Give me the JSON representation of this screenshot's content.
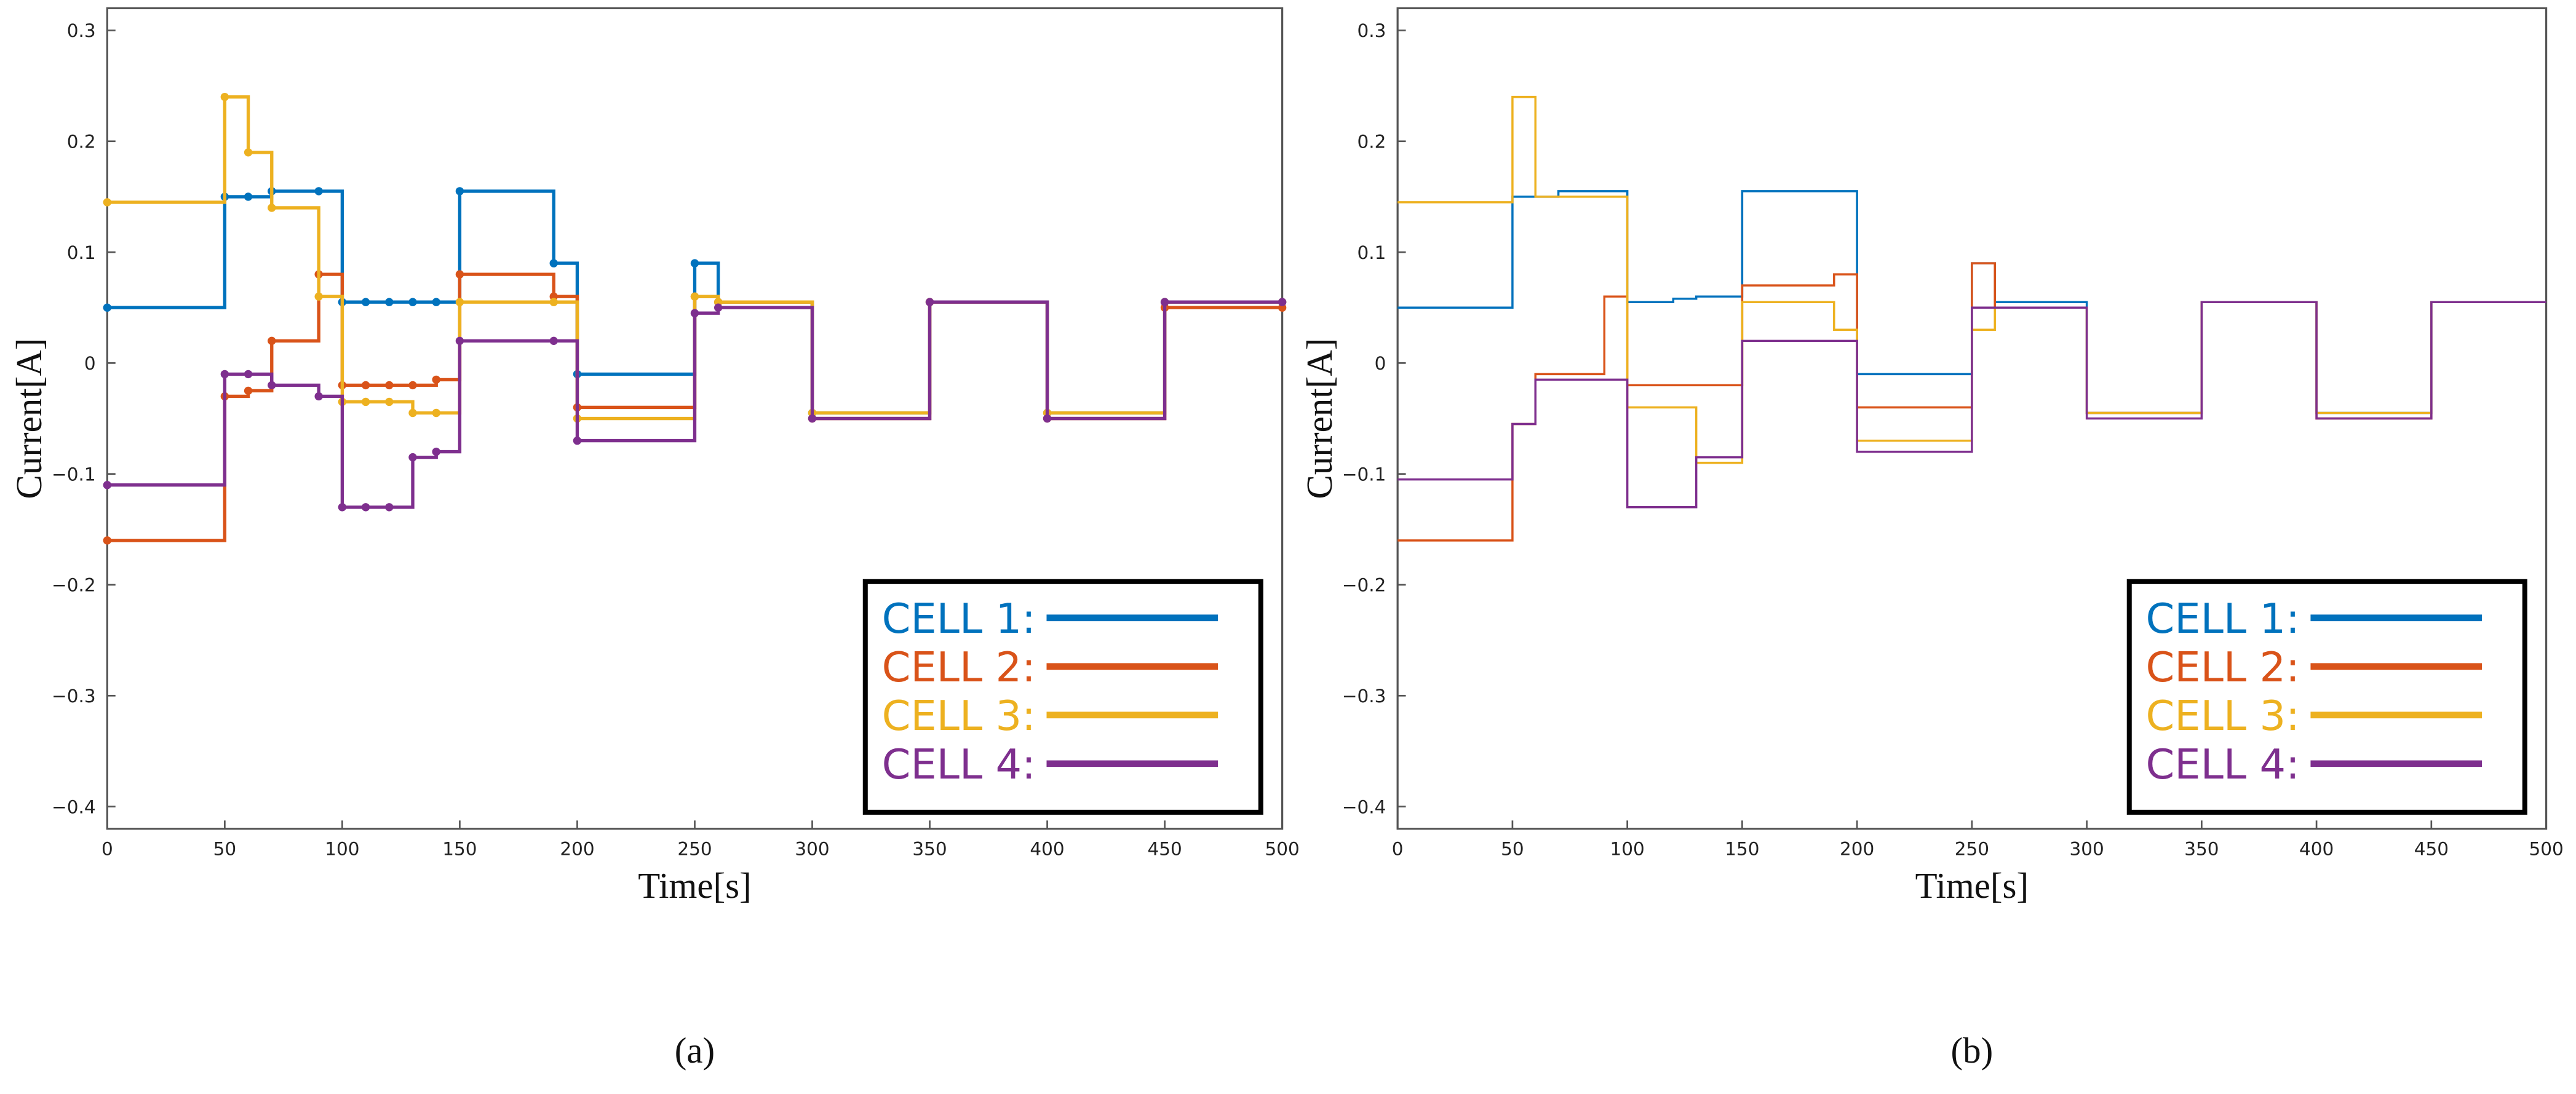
{
  "chart_data": [
    {
      "type": "line",
      "caption": "(a)",
      "xlabel": "Time[s]",
      "ylabel": "Current[A]",
      "xlim": [
        0,
        500
      ],
      "ylim": [
        -0.42,
        0.32
      ],
      "xticks": [
        0,
        50,
        100,
        150,
        200,
        250,
        300,
        350,
        400,
        450,
        500
      ],
      "yticks": [
        {
          "value": -0.4,
          "label": "−0.4"
        },
        {
          "value": -0.3,
          "label": "−0.3"
        },
        {
          "value": -0.2,
          "label": "−0.2"
        },
        {
          "value": -0.1,
          "label": "−0.1"
        },
        0,
        0.1,
        0.2,
        0.3
      ],
      "step": true,
      "markers": true,
      "legend": "lower right",
      "x": [
        0,
        50,
        60,
        70,
        90,
        100,
        110,
        120,
        130,
        140,
        150,
        190,
        200,
        250,
        260,
        300,
        350,
        400,
        450,
        500
      ],
      "series": [
        {
          "name": "CELL 1:",
          "color": "#0072BD",
          "values": [
            0.05,
            0.15,
            0.15,
            0.155,
            0.155,
            0.055,
            0.055,
            0.055,
            0.055,
            0.055,
            0.155,
            0.09,
            -0.01,
            0.09,
            0.055,
            -0.045,
            0.055,
            -0.045,
            0.055,
            0.055
          ]
        },
        {
          "name": "CELL 2:",
          "color": "#D95319",
          "values": [
            -0.16,
            -0.03,
            -0.025,
            0.02,
            0.08,
            -0.02,
            -0.02,
            -0.02,
            -0.02,
            -0.015,
            0.08,
            0.06,
            -0.04,
            0.06,
            0.055,
            -0.05,
            0.055,
            -0.05,
            0.05,
            0.05
          ]
        },
        {
          "name": "CELL 3:",
          "color": "#EDB120",
          "values": [
            0.145,
            0.24,
            0.19,
            0.14,
            0.06,
            -0.035,
            -0.035,
            -0.035,
            -0.045,
            -0.045,
            0.055,
            0.055,
            -0.05,
            0.06,
            0.055,
            -0.045,
            0.055,
            -0.045,
            0.055,
            0.055
          ]
        },
        {
          "name": "CELL 4:",
          "color": "#7E2F8E",
          "values": [
            -0.11,
            -0.01,
            -0.01,
            -0.02,
            -0.03,
            -0.13,
            -0.13,
            -0.13,
            -0.085,
            -0.08,
            0.02,
            0.02,
            -0.07,
            0.045,
            0.05,
            -0.05,
            0.055,
            -0.05,
            0.055,
            0.055
          ]
        }
      ]
    },
    {
      "type": "line",
      "caption": "(b)",
      "xlabel": "Time[s]",
      "ylabel": "Current[A]",
      "xlim": [
        0,
        500
      ],
      "ylim": [
        -0.42,
        0.32
      ],
      "xticks": [
        0,
        50,
        100,
        150,
        200,
        250,
        300,
        350,
        400,
        450,
        500
      ],
      "yticks": [
        {
          "value": -0.4,
          "label": "−0.4"
        },
        {
          "value": -0.3,
          "label": "−0.3"
        },
        {
          "value": -0.2,
          "label": "−0.2"
        },
        {
          "value": -0.1,
          "label": "−0.1"
        },
        0,
        0.1,
        0.2,
        0.3
      ],
      "step": true,
      "markers": false,
      "legend": "lower right",
      "x": [
        0,
        50,
        60,
        70,
        90,
        100,
        110,
        120,
        130,
        140,
        150,
        190,
        200,
        250,
        260,
        300,
        350,
        400,
        450,
        500
      ],
      "series": [
        {
          "name": "CELL 1:",
          "color": "#0072BD",
          "values": [
            0.05,
            0.15,
            0.15,
            0.155,
            0.155,
            0.055,
            0.055,
            0.058,
            0.06,
            0.06,
            0.155,
            0.155,
            -0.01,
            0.09,
            0.055,
            -0.045,
            0.055,
            -0.045,
            0.055,
            0.055
          ]
        },
        {
          "name": "CELL 2:",
          "color": "#D95319",
          "values": [
            -0.16,
            -0.055,
            -0.01,
            -0.01,
            0.06,
            -0.02,
            -0.02,
            -0.02,
            -0.02,
            -0.02,
            0.07,
            0.08,
            -0.04,
            0.09,
            0.05,
            -0.045,
            0.055,
            -0.05,
            0.055,
            0.055
          ]
        },
        {
          "name": "CELL 3:",
          "color": "#EDB120",
          "values": [
            0.145,
            0.24,
            0.15,
            0.15,
            0.15,
            -0.04,
            -0.04,
            -0.04,
            -0.09,
            -0.09,
            0.055,
            0.03,
            -0.07,
            0.03,
            0.05,
            -0.045,
            0.055,
            -0.045,
            0.055,
            0.055
          ]
        },
        {
          "name": "CELL 4:",
          "color": "#7E2F8E",
          "values": [
            -0.105,
            -0.055,
            -0.015,
            -0.015,
            -0.015,
            -0.13,
            -0.13,
            -0.13,
            -0.085,
            -0.085,
            0.02,
            0.02,
            -0.08,
            0.05,
            0.05,
            -0.05,
            0.055,
            -0.05,
            0.055,
            0.055
          ]
        }
      ]
    }
  ]
}
